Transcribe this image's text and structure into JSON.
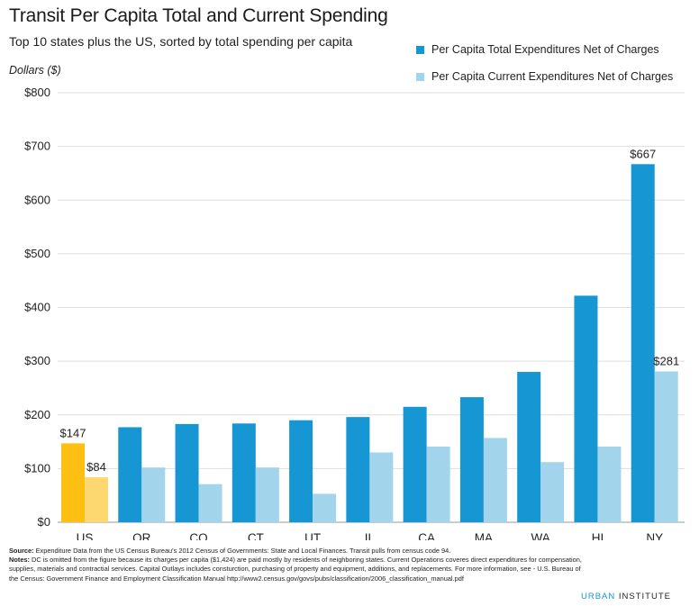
{
  "title": "Transit Per Capita Total and Current Spending",
  "subtitle": "Top 10 states plus the US, sorted by total spending per capita",
  "brand": {
    "part1": "URBAN",
    "part2": " INSTITUTE"
  },
  "footer": {
    "source_label": "Source:",
    "source_text": " Expenditure Data from the US Census Bureau's 2012 Census of Governments: State and Local Finances. Transit pulls from census code 94.",
    "notes_label": "Notes:",
    "notes_text": " DC is omitted from the figure because its charges per capita ($1,424) are paid mostly by residents of neighboring states. Current Operations coveres direct expenditures for compensation, supplies, materials and contractial services. Capital Outlays includes consturction, purchasing of property and equipment, additions, and replacements. For more information, see - U.S. Bureau of the Census: Government Finance and Employment Classification Manual http://www2.census.gov/govs/pubs/classification/2006_classification_manual.pdf"
  },
  "chart_data": {
    "type": "bar",
    "title": "Transit Per Capita Total and Current Spending",
    "subtitle": "Top 10 states plus the US, sorted by total spending per capita",
    "ylabel": "Dollars ($)",
    "xlabel": "",
    "ylim": [
      0,
      800
    ],
    "yticks": [
      0,
      100,
      200,
      300,
      400,
      500,
      600,
      700,
      800
    ],
    "ytick_labels": [
      "$0",
      "$100",
      "$200",
      "$300",
      "$400",
      "$500",
      "$600",
      "$700",
      "$800"
    ],
    "grid": true,
    "legend_position": "top-right",
    "categories": [
      "US",
      "OR",
      "CO",
      "CT",
      "UT",
      "IL",
      "CA",
      "MA",
      "WA",
      "HI",
      "NY"
    ],
    "series": [
      {
        "name": "Per Capita Total Expenditures Net of Charges",
        "color": "#1696d2",
        "highlight_color": "#fdbf11",
        "values": [
          147,
          177,
          183,
          184,
          190,
          196,
          215,
          233,
          280,
          422,
          667
        ],
        "data_labels": [
          "$147",
          "",
          "",
          "",
          "",
          "",
          "",
          "",
          "",
          "",
          "$667"
        ]
      },
      {
        "name": "Per Capita Current Expenditures Net of Charges",
        "color": "#a2d4ec",
        "highlight_color": "#fdd870",
        "values": [
          84,
          102,
          71,
          102,
          53,
          130,
          141,
          157,
          112,
          141,
          281
        ],
        "data_labels": [
          "$84",
          "",
          "",
          "",
          "",
          "",
          "",
          "",
          "",
          "",
          "$281"
        ]
      }
    ]
  }
}
